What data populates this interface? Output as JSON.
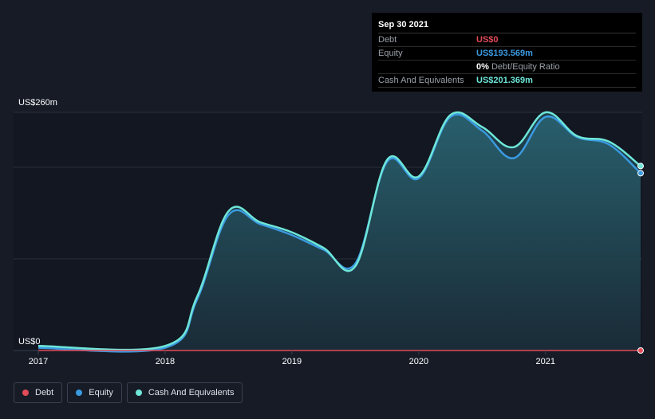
{
  "chart_data": {
    "type": "area",
    "y_top_label": "US$260m",
    "y_bottom_label": "US$0",
    "ylim": [
      0,
      260
    ],
    "xlim": [
      2017,
      2021.75
    ],
    "x_ticks": [
      "2017",
      "2018",
      "2019",
      "2020",
      "2021"
    ],
    "grid": true,
    "series": [
      {
        "name": "Debt",
        "color": "#e24b58",
        "points": [
          [
            2017,
            0
          ],
          [
            2021.75,
            0
          ]
        ]
      },
      {
        "name": "Equity",
        "color": "#3a9ae0",
        "points": [
          [
            2017,
            3
          ],
          [
            2018,
            3
          ],
          [
            2018.25,
            55
          ],
          [
            2018.5,
            148
          ],
          [
            2018.75,
            138
          ],
          [
            2019,
            126
          ],
          [
            2019.25,
            110
          ],
          [
            2019.5,
            95
          ],
          [
            2019.75,
            206
          ],
          [
            2020,
            188
          ],
          [
            2020.25,
            255
          ],
          [
            2020.5,
            240
          ],
          [
            2020.75,
            210
          ],
          [
            2021,
            255
          ],
          [
            2021.25,
            233
          ],
          [
            2021.5,
            225
          ],
          [
            2021.75,
            193.569
          ]
        ]
      },
      {
        "name": "Cash And Equivalents",
        "color": "#6ee6d8",
        "points": [
          [
            2017,
            5
          ],
          [
            2018,
            5
          ],
          [
            2018.25,
            58
          ],
          [
            2018.5,
            152
          ],
          [
            2018.75,
            140
          ],
          [
            2019,
            129
          ],
          [
            2019.25,
            112
          ],
          [
            2019.5,
            92
          ],
          [
            2019.75,
            208
          ],
          [
            2020,
            190
          ],
          [
            2020.25,
            257
          ],
          [
            2020.5,
            244
          ],
          [
            2020.75,
            222
          ],
          [
            2021,
            260
          ],
          [
            2021.25,
            234
          ],
          [
            2021.5,
            228
          ],
          [
            2021.75,
            201.369
          ]
        ]
      }
    ]
  },
  "tooltip": {
    "date": "Sep 30 2021",
    "rows": [
      {
        "label": "Debt",
        "value": "US$0",
        "color": "#e24b58"
      },
      {
        "label": "Equity",
        "value": "US$193.569m",
        "color": "#3a9ae0"
      },
      {
        "label": "",
        "value": "0%",
        "extra": "Debt/Equity Ratio",
        "color": "#ffffff"
      },
      {
        "label": "Cash And Equivalents",
        "value": "US$201.369m",
        "color": "#6ee6d8"
      }
    ]
  },
  "legend": [
    {
      "label": "Debt",
      "color": "#e24b58"
    },
    {
      "label": "Equity",
      "color": "#3a9ae0"
    },
    {
      "label": "Cash And Equivalents",
      "color": "#6ee6d8"
    }
  ]
}
